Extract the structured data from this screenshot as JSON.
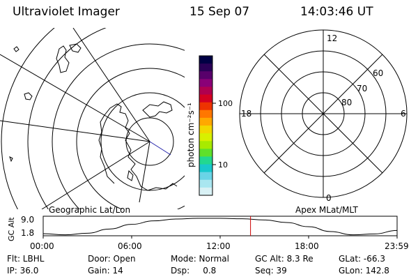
{
  "header": {
    "title": "Ultraviolet Imager",
    "date": "15 Sep 07",
    "time": "14:03:46 UT"
  },
  "panels": {
    "left_label": "Geographic Lat/Lon",
    "right_label": "Apex MLat/MLT"
  },
  "colorbar": {
    "unit_label": "photon cm⁻²s⁻¹",
    "tick_labels": [
      "100",
      "10"
    ],
    "colors": [
      "#000044",
      "#2a0057",
      "#58006b",
      "#8a0077",
      "#b0004f",
      "#d40022",
      "#ee3300",
      "#ff7700",
      "#ffa800",
      "#f2d800",
      "#d8f000",
      "#a8ea00",
      "#5fe02a",
      "#22d890",
      "#19c8cc",
      "#6ad4e6",
      "#a9e6f0",
      "#d9f1f5"
    ]
  },
  "polar_grid": {
    "mlt_labels": {
      "top": "12",
      "left": "18",
      "right": "6",
      "bottom": "0"
    },
    "lat_labels": [
      "60",
      "70",
      "80"
    ]
  },
  "chart_data": {
    "type": "line",
    "title": "",
    "ylabel": "GC Alt",
    "yticks": [
      "9.0",
      "1.8"
    ],
    "ylim": [
      1.8,
      9.0
    ],
    "xticks": [
      "00:00",
      "06:00",
      "12:00",
      "18:00",
      "23:59"
    ],
    "x_hours": [
      0,
      1.5,
      3,
      4.5,
      6,
      7.5,
      9,
      10.5,
      12,
      13.5,
      15,
      16.5,
      18,
      19.5,
      21,
      22.5,
      24
    ],
    "y_alt": [
      2.4,
      1.9,
      2.6,
      4.4,
      6.4,
      7.9,
      8.7,
      9.0,
      9.0,
      8.8,
      8.3,
      7.2,
      5.4,
      3.3,
      1.9,
      2.3,
      3.8
    ],
    "current_time_hours": 14.06,
    "marker_color": "#cc0000"
  },
  "status": {
    "flt": "Flt: LBHL",
    "ip": "IP: 36.0",
    "door": "Door: Open",
    "gain": "Gain: 14",
    "mode": "Mode: Normal",
    "dsp": "Dsp:     0.8",
    "gc_alt": "GC Alt: 8.3 Re",
    "seq": "Seq: 39",
    "glat": "GLat: -66.3",
    "glon": "GLon: 142.8"
  }
}
